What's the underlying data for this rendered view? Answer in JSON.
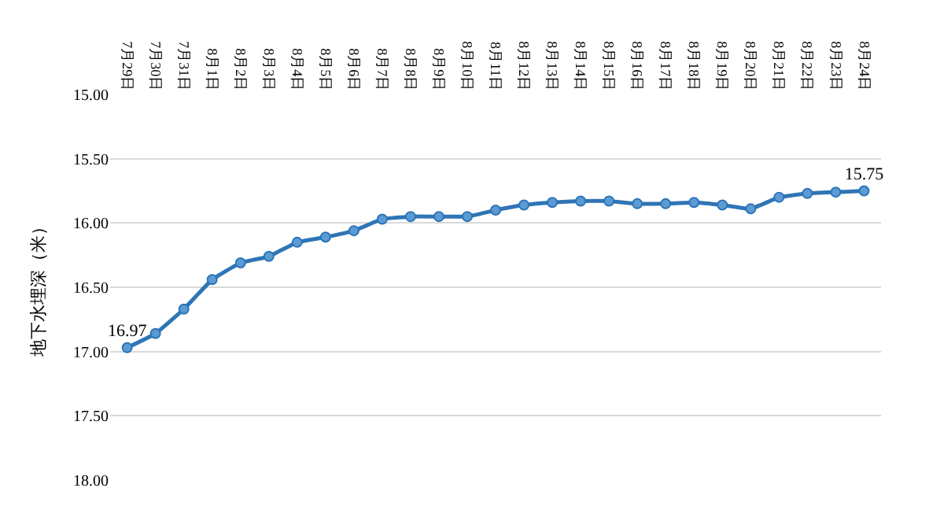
{
  "chart_data": {
    "type": "line",
    "ylabel": "地下水埋深（米）",
    "categories": [
      "7月29日",
      "7月30日",
      "7月31日",
      "8月1日",
      "8月2日",
      "8月3日",
      "8月4日",
      "8月5日",
      "8月6日",
      "8月7日",
      "8月8日",
      "8月9日",
      "8月10日",
      "8月11日",
      "8月12日",
      "8月13日",
      "8月14日",
      "8月15日",
      "8月16日",
      "8月17日",
      "8月18日",
      "8月19日",
      "8月20日",
      "8月21日",
      "8月22日",
      "8月23日",
      "8月24日"
    ],
    "series": [
      {
        "color": "#2e75b6",
        "values": [
          16.97,
          16.86,
          16.67,
          16.44,
          16.31,
          16.26,
          16.15,
          16.11,
          16.06,
          15.97,
          15.95,
          15.95,
          15.95,
          15.9,
          15.86,
          15.84,
          15.83,
          15.83,
          15.85,
          15.85,
          15.84,
          15.86,
          15.89,
          15.8,
          15.77,
          15.76,
          15.75
        ],
        "value_labels": [
          "16.97",
          null,
          null,
          null,
          null,
          null,
          null,
          null,
          null,
          null,
          null,
          null,
          null,
          null,
          null,
          null,
          null,
          null,
          null,
          null,
          null,
          null,
          null,
          null,
          null,
          null,
          "15.75"
        ]
      }
    ],
    "ylim": [
      18.0,
      15.0
    ],
    "yticks": [
      {
        "value": 15,
        "label": "15.00"
      },
      {
        "value": 15.5,
        "label": "15.50"
      },
      {
        "value": 16,
        "label": "16.00"
      },
      {
        "value": 16.5,
        "label": "16.50"
      },
      {
        "value": 17,
        "label": "17.00"
      },
      {
        "value": 17.5,
        "label": "17.50"
      },
      {
        "value": 18,
        "label": "18.00"
      }
    ],
    "grid": "y",
    "marker": "circle",
    "line_style": "solid"
  }
}
